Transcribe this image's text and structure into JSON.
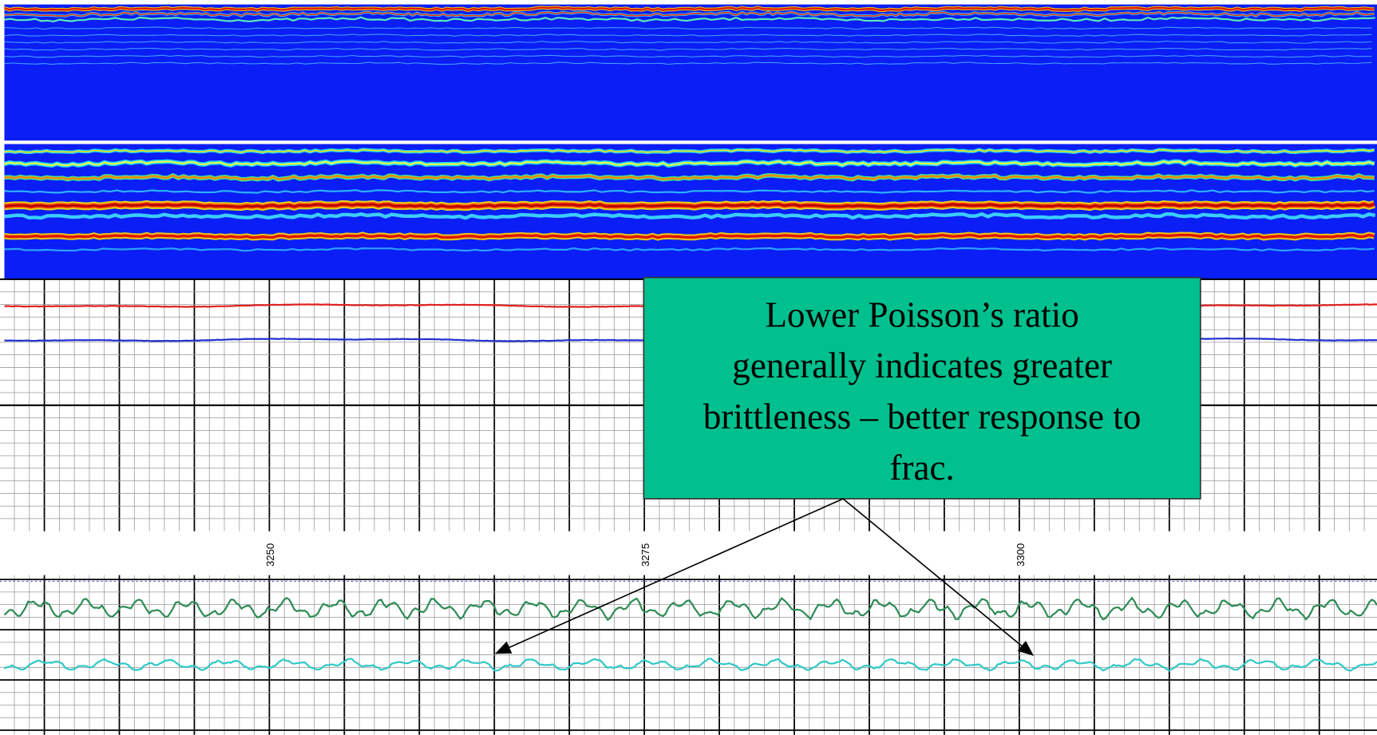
{
  "depth_track": {
    "labels": [
      "3250",
      "3275",
      "3300"
    ]
  },
  "callout": {
    "lines": [
      "Lower Poisson’s ratio",
      "generally indicates greater",
      "brittleness – better response to",
      "frac."
    ]
  }
}
